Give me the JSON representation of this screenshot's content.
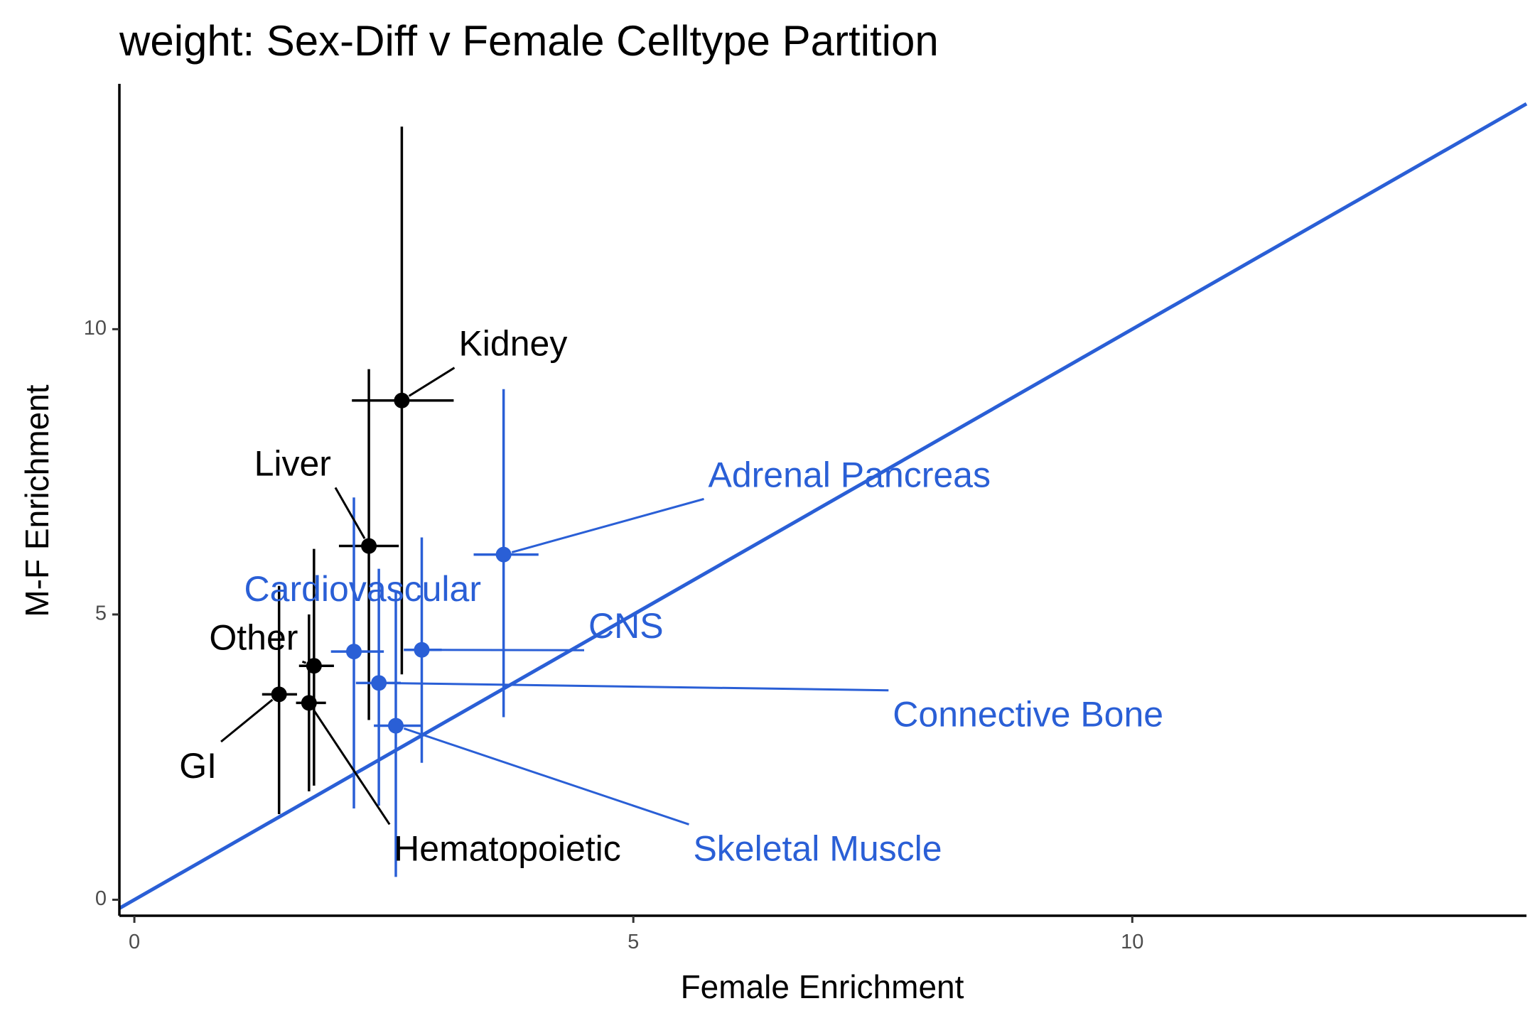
{
  "chart_data": {
    "type": "scatter",
    "title": "weight: Sex-Diff v Female Celltype Partition",
    "xlabel": "Female Enrichment",
    "ylabel": "M-F Enrichment",
    "xlim": [
      -0.15,
      13.95
    ],
    "ylim": [
      -0.28,
      14.3
    ],
    "x_ticks": [
      0,
      5,
      10
    ],
    "y_ticks": [
      0,
      5,
      10
    ],
    "grid": false,
    "reference_line": {
      "slope": 1,
      "intercept": 0,
      "color": "#2a5fd6"
    },
    "colors": {
      "group_black": "#000000",
      "group_blue": "#2a5fd6"
    },
    "points": [
      {
        "label": "Kidney",
        "group": "black",
        "x": 2.68,
        "y": 8.75,
        "x_err": [
          2.18,
          3.2
        ],
        "y_err": [
          3.95,
          13.55
        ],
        "label_x": 3.25,
        "label_y": 9.7
      },
      {
        "label": "Liver",
        "group": "black",
        "x": 2.35,
        "y": 6.2,
        "x_err": [
          2.05,
          2.65
        ],
        "y_err": [
          3.15,
          9.3
        ],
        "label_x": 1.2,
        "label_y": 7.6
      },
      {
        "label": "Other",
        "group": "black",
        "x": 1.8,
        "y": 4.1,
        "x_err": [
          1.65,
          2.0
        ],
        "y_err": [
          2.0,
          6.15
        ],
        "label_x": 0.75,
        "label_y": 4.55
      },
      {
        "label": "GI",
        "group": "black",
        "x": 1.45,
        "y": 3.6,
        "x_err": [
          1.28,
          1.63
        ],
        "y_err": [
          1.5,
          5.5
        ],
        "label_x": 0.45,
        "label_y": 2.3
      },
      {
        "label": "Hematopoietic",
        "group": "black",
        "x": 1.75,
        "y": 3.45,
        "x_err": [
          1.62,
          1.92
        ],
        "y_err": [
          1.9,
          5.0
        ],
        "label_x": 2.6,
        "label_y": 0.85
      },
      {
        "label": "Adrenal Pancreas",
        "group": "blue",
        "x": 3.7,
        "y": 6.05,
        "x_err": [
          3.4,
          4.05
        ],
        "y_err": [
          3.2,
          8.95
        ],
        "label_x": 5.75,
        "label_y": 7.4
      },
      {
        "label": "Cardiovascular",
        "group": "blue",
        "x": 2.2,
        "y": 4.35,
        "x_err": [
          1.97,
          2.5
        ],
        "y_err": [
          1.6,
          7.05
        ],
        "label_x": 1.1,
        "label_y": 5.4
      },
      {
        "label": "CNS",
        "group": "blue",
        "x": 2.88,
        "y": 4.38,
        "x_err": [
          2.7,
          3.08
        ],
        "y_err": [
          2.4,
          6.35
        ],
        "label_x": 4.55,
        "label_y": 4.75
      },
      {
        "label": "Connective Bone",
        "group": "blue",
        "x": 2.45,
        "y": 3.8,
        "x_err": [
          2.22,
          2.67
        ],
        "y_err": [
          1.65,
          5.8
        ],
        "label_x": 7.6,
        "label_y": 3.2
      },
      {
        "label": "Skeletal Muscle",
        "group": "blue",
        "x": 2.62,
        "y": 3.05,
        "x_err": [
          2.4,
          2.88
        ],
        "y_err": [
          0.4,
          5.4
        ],
        "label_x": 5.6,
        "label_y": 0.85
      }
    ]
  }
}
